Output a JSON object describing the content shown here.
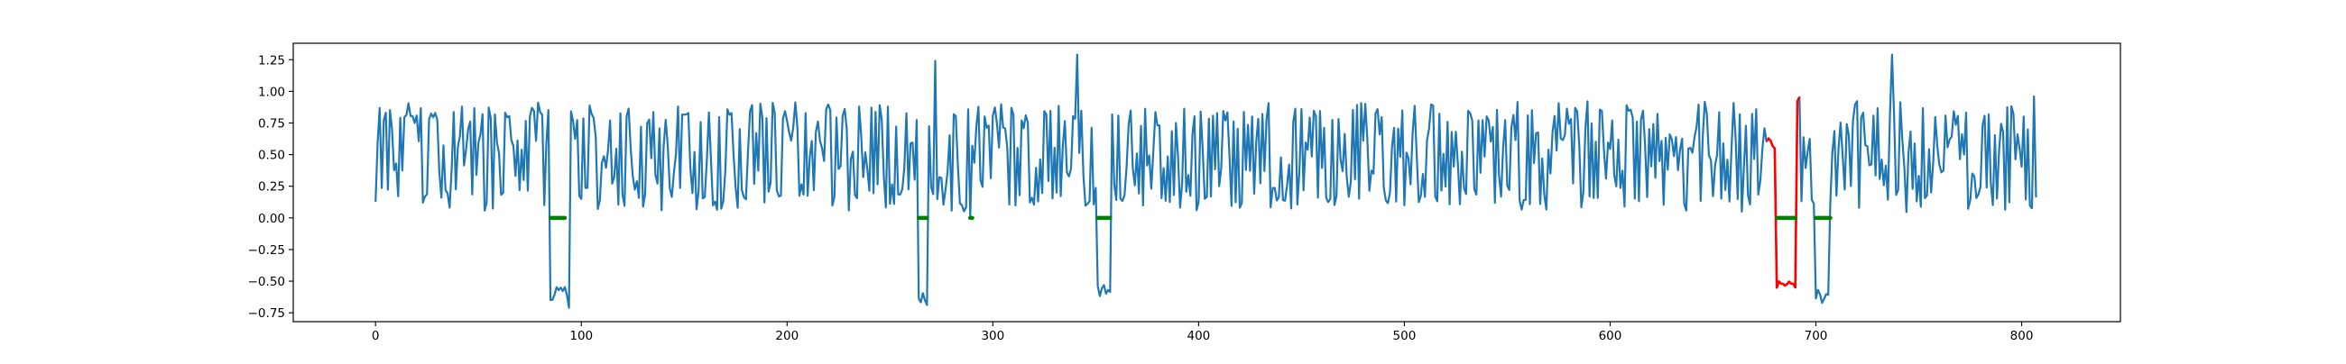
{
  "chart_data": {
    "type": "line",
    "title": "",
    "xlabel": "",
    "ylabel": "",
    "xlim": [
      -40,
      848
    ],
    "ylim": [
      -0.82,
      1.38
    ],
    "xticks": [
      0,
      100,
      200,
      300,
      400,
      500,
      600,
      700,
      800
    ],
    "xtick_labels": [
      "0",
      "100",
      "200",
      "300",
      "400",
      "500",
      "600",
      "700",
      "800"
    ],
    "yticks": [
      -0.75,
      -0.5,
      -0.25,
      0.0,
      0.25,
      0.5,
      0.75,
      1.0,
      1.25
    ],
    "ytick_labels": [
      "−0.75",
      "−0.50",
      "−0.25",
      "0.00",
      "0.25",
      "0.50",
      "0.75",
      "1.00",
      "1.25"
    ],
    "grid": false,
    "legend": "none",
    "series_colors": {
      "signal": "#1f77b4",
      "anomaly": "#ff0000",
      "markers": "#008000"
    },
    "signal": {
      "x_start": 0,
      "x_end": 807,
      "seed": 13,
      "typical_range": [
        0.1,
        0.95
      ],
      "dips": [
        {
          "x": [
            85,
            93
          ],
          "level": -0.6
        },
        {
          "x": [
            94,
            94
          ],
          "level": -0.72
        },
        {
          "x": [
            264,
            268
          ],
          "level": -0.63
        },
        {
          "x": [
            351,
            357
          ],
          "level": -0.58
        },
        {
          "x": [
            676,
            680
          ],
          "level": 0.6
        },
        {
          "x": [
            681,
            690
          ],
          "level": -0.55
        },
        {
          "x": [
            691,
            692
          ],
          "level": 0.9
        },
        {
          "x": [
            700,
            706
          ],
          "level": -0.62
        }
      ],
      "spikes": [
        {
          "x": 272,
          "y": 1.24
        },
        {
          "x": 341,
          "y": 1.29
        },
        {
          "x": 737,
          "y": 1.29
        },
        {
          "x": 806,
          "y": 0.96
        },
        {
          "x": 289,
          "y": 0.01
        }
      ]
    },
    "anomaly_range": [
      676,
      692
    ],
    "marker_segments": [
      [
        85,
        92
      ],
      [
        264,
        268
      ],
      [
        289,
        290
      ],
      [
        351,
        357
      ],
      [
        681,
        690
      ],
      [
        700,
        707
      ]
    ]
  }
}
